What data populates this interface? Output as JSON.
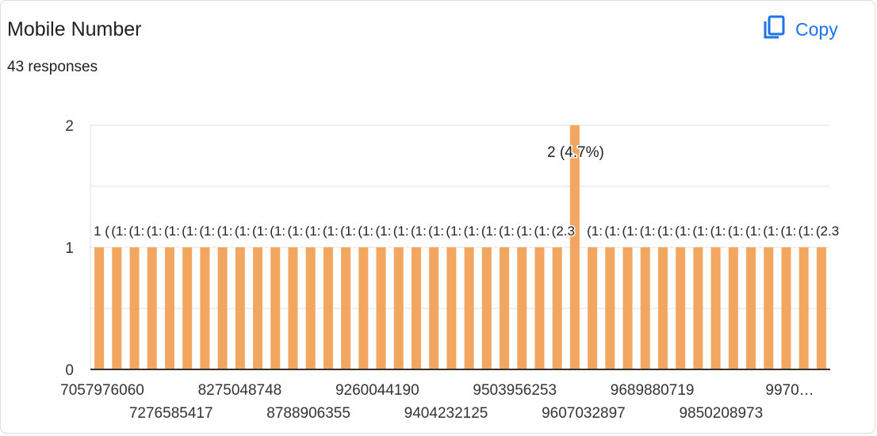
{
  "header": {
    "title": "Mobile Number",
    "responses": "43 responses",
    "copy_label": "Copy"
  },
  "colors": {
    "bar": "#f3a65f",
    "accent": "#1a73e8",
    "grid": "#e0e0e0",
    "axis": "#333333",
    "text": "#202124"
  },
  "chart_data": {
    "type": "bar",
    "title": "",
    "xlabel": "",
    "ylabel": "",
    "ylim": [
      0,
      2
    ],
    "yticks": [
      0,
      1,
      2
    ],
    "grid": true,
    "bar_count": 42,
    "values": [
      1,
      1,
      1,
      1,
      1,
      1,
      1,
      1,
      1,
      1,
      1,
      1,
      1,
      1,
      1,
      1,
      1,
      1,
      1,
      1,
      1,
      1,
      1,
      1,
      1,
      1,
      1,
      2,
      1,
      1,
      1,
      1,
      1,
      1,
      1,
      1,
      1,
      1,
      1,
      1,
      1,
      1
    ],
    "tick_labels_shown": [
      "7057976060",
      "7276585417",
      "8275048748",
      "8788906355",
      "9260044190",
      "9404232125",
      "9503956253",
      "9607032897",
      "9689880719",
      "9850208973",
      "9970…"
    ],
    "data_label_2": "2 (4.7%)",
    "data_label_1_prefix": "1 (",
    "data_label_truncated": "(1:",
    "data_label_truncated_alt": "(2.3"
  }
}
